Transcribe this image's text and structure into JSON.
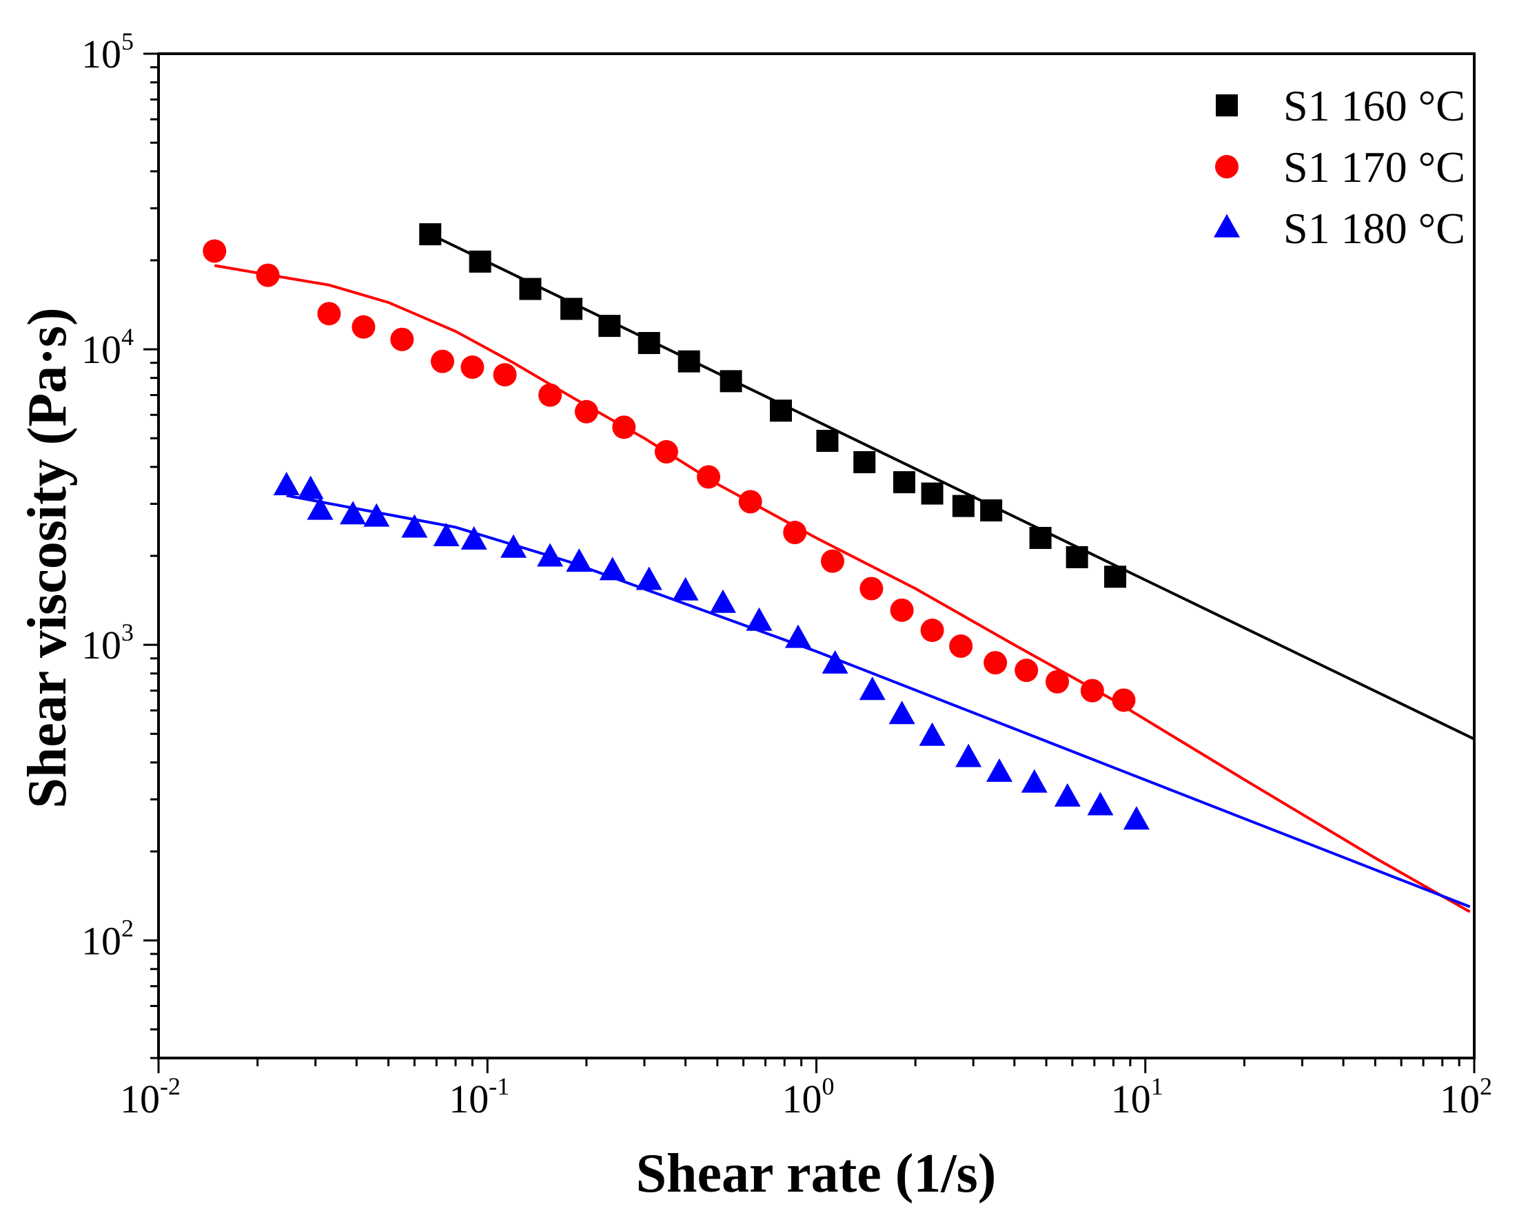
{
  "chart_data": {
    "type": "scatter",
    "title": "",
    "xlabel": "Shear rate (1/s)",
    "ylabel": "Shear viscosity (Pa·s)",
    "xscale": "log",
    "yscale": "log",
    "xlim": [
      0.01,
      100
    ],
    "ylim": [
      40,
      100000
    ],
    "x_ticks": [
      {
        "value": 0.01,
        "base": "10",
        "exp": "-2"
      },
      {
        "value": 0.1,
        "base": "10",
        "exp": "-1"
      },
      {
        "value": 1,
        "base": "10",
        "exp": "0"
      },
      {
        "value": 10,
        "base": "10",
        "exp": "1"
      },
      {
        "value": 100,
        "base": "10",
        "exp": "2"
      }
    ],
    "y_ticks": [
      {
        "value": 100,
        "base": "10",
        "exp": "2"
      },
      {
        "value": 1000,
        "base": "10",
        "exp": "3"
      },
      {
        "value": 10000,
        "base": "10",
        "exp": "4"
      },
      {
        "value": 100000,
        "base": "10",
        "exp": "5"
      }
    ],
    "legend_position": "top-right",
    "series": [
      {
        "name": "S1 160 °C",
        "color": "#000000",
        "marker": "square",
        "points": [
          [
            0.067,
            24500
          ],
          [
            0.095,
            19800
          ],
          [
            0.135,
            16000
          ],
          [
            0.18,
            13700
          ],
          [
            0.235,
            12000
          ],
          [
            0.31,
            10500
          ],
          [
            0.41,
            9100
          ],
          [
            0.55,
            7800
          ],
          [
            0.78,
            6200
          ],
          [
            1.08,
            4900
          ],
          [
            1.4,
            4150
          ],
          [
            1.85,
            3550
          ],
          [
            2.25,
            3250
          ],
          [
            2.8,
            2950
          ],
          [
            3.4,
            2850
          ],
          [
            4.8,
            2300
          ],
          [
            6.2,
            1980
          ],
          [
            8.1,
            1700
          ]
        ],
        "fit": [
          [
            0.067,
            24500
          ],
          [
            100,
            480
          ]
        ]
      },
      {
        "name": "S1 170 °C",
        "color": "#ff0000",
        "marker": "circle",
        "points": [
          [
            0.0148,
            21500
          ],
          [
            0.0215,
            17800
          ],
          [
            0.033,
            13200
          ],
          [
            0.042,
            11900
          ],
          [
            0.055,
            10800
          ],
          [
            0.073,
            9100
          ],
          [
            0.09,
            8700
          ],
          [
            0.113,
            8200
          ],
          [
            0.155,
            7000
          ],
          [
            0.2,
            6150
          ],
          [
            0.26,
            5450
          ],
          [
            0.35,
            4500
          ],
          [
            0.47,
            3700
          ],
          [
            0.63,
            3050
          ],
          [
            0.86,
            2400
          ],
          [
            1.12,
            1920
          ],
          [
            1.47,
            1550
          ],
          [
            1.82,
            1310
          ],
          [
            2.25,
            1120
          ],
          [
            2.75,
            990
          ],
          [
            3.5,
            870
          ],
          [
            4.35,
            820
          ],
          [
            5.4,
            750
          ],
          [
            6.9,
            700
          ],
          [
            8.6,
            650
          ]
        ],
        "fit": [
          [
            0.0148,
            19200
          ],
          [
            0.022,
            17800
          ],
          [
            0.033,
            16500
          ],
          [
            0.05,
            14400
          ],
          [
            0.08,
            11500
          ],
          [
            0.12,
            9000
          ],
          [
            0.18,
            6900
          ],
          [
            0.3,
            5000
          ],
          [
            0.5,
            3500
          ],
          [
            1.0,
            2300
          ],
          [
            2.0,
            1550
          ],
          [
            4.0,
            1000
          ],
          [
            8.0,
            650
          ],
          [
            20,
            350
          ],
          [
            50,
            190
          ],
          [
            97,
            125
          ]
        ]
      },
      {
        "name": "S1 180 °C",
        "color": "#0000ff",
        "marker": "triangle",
        "points": [
          [
            0.0245,
            3450
          ],
          [
            0.029,
            3350
          ],
          [
            0.031,
            2850
          ],
          [
            0.039,
            2750
          ],
          [
            0.046,
            2700
          ],
          [
            0.06,
            2480
          ],
          [
            0.075,
            2320
          ],
          [
            0.091,
            2260
          ],
          [
            0.12,
            2120
          ],
          [
            0.155,
            1980
          ],
          [
            0.19,
            1900
          ],
          [
            0.24,
            1780
          ],
          [
            0.31,
            1650
          ],
          [
            0.4,
            1520
          ],
          [
            0.52,
            1380
          ],
          [
            0.67,
            1200
          ],
          [
            0.88,
            1050
          ],
          [
            1.14,
            860
          ],
          [
            1.48,
            700
          ],
          [
            1.82,
            580
          ],
          [
            2.25,
            490
          ],
          [
            2.9,
            415
          ],
          [
            3.6,
            370
          ],
          [
            4.6,
            340
          ],
          [
            5.8,
            305
          ],
          [
            7.3,
            285
          ],
          [
            9.4,
            255
          ]
        ],
        "fit": [
          [
            0.0245,
            3200
          ],
          [
            0.08,
            2500
          ],
          [
            0.18,
            1900
          ],
          [
            1.0,
            950
          ],
          [
            97,
            130
          ]
        ]
      }
    ]
  }
}
